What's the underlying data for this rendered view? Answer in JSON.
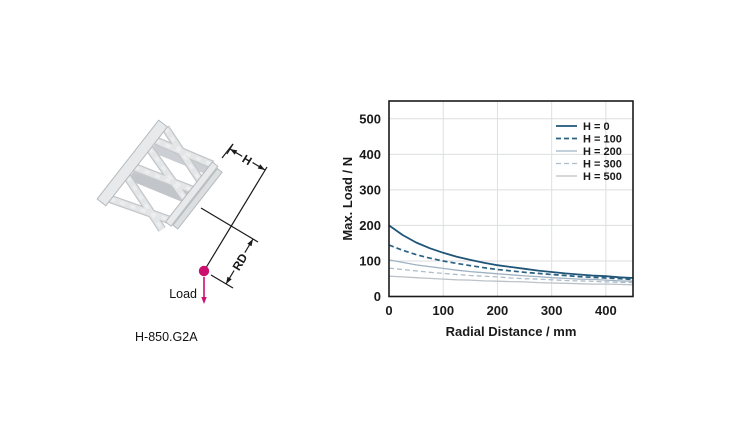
{
  "figure": {
    "caption": "H-850.G2A",
    "load_label": "Load",
    "h_dim_label": "H",
    "rd_dim_label": "RD",
    "accent_color": "#cc0f6e"
  },
  "chart_data": {
    "type": "line",
    "title": "",
    "xlabel": "Radial Distance / mm",
    "ylabel": "Max. Load / N",
    "xlim": [
      0,
      450
    ],
    "ylim": [
      0,
      550
    ],
    "xticks": [
      0,
      100,
      200,
      300,
      400
    ],
    "yticks": [
      0,
      100,
      200,
      300,
      400,
      500
    ],
    "grid": true,
    "grid_color": "#dcdee0",
    "frame_color": "#1a1a1a",
    "legend_position": "top-right",
    "x": [
      0,
      25,
      50,
      75,
      100,
      125,
      150,
      175,
      200,
      225,
      250,
      275,
      300,
      325,
      350,
      375,
      400,
      425,
      450
    ],
    "series": [
      {
        "name": "H = 0",
        "color": "#205578",
        "dash": "solid",
        "width": 1.8,
        "values": [
          200,
          173,
          152,
          136,
          123,
          112,
          103,
          95,
          88,
          83,
          78,
          73,
          69,
          65,
          62,
          59,
          57,
          54,
          52
        ]
      },
      {
        "name": "H = 100",
        "color": "#2b6183",
        "dash": "dashed",
        "width": 1.7,
        "values": [
          145,
          130,
          118,
          108,
          100,
          93,
          87,
          81,
          76,
          72,
          68,
          65,
          62,
          59,
          56,
          54,
          52,
          50,
          48
        ]
      },
      {
        "name": "H = 200",
        "color": "#9fb2c2",
        "dash": "solid",
        "width": 1.3,
        "values": [
          103,
          96,
          89,
          84,
          79,
          74,
          70,
          67,
          64,
          61,
          58,
          56,
          53,
          51,
          49,
          48,
          46,
          44,
          43
        ]
      },
      {
        "name": "H = 300",
        "color": "#aebdc9",
        "dash": "dashed",
        "width": 1.3,
        "values": [
          80,
          76,
          72,
          68,
          65,
          62,
          59,
          57,
          55,
          52,
          50,
          49,
          47,
          45,
          44,
          43,
          41,
          40,
          39
        ]
      },
      {
        "name": "H = 500",
        "color": "#bcc2c7",
        "dash": "solid",
        "width": 1.3,
        "values": [
          57,
          55,
          53,
          51,
          49,
          47,
          46,
          44,
          43,
          42,
          41,
          39,
          38,
          37,
          36,
          35,
          35,
          34,
          33
        ]
      }
    ]
  }
}
